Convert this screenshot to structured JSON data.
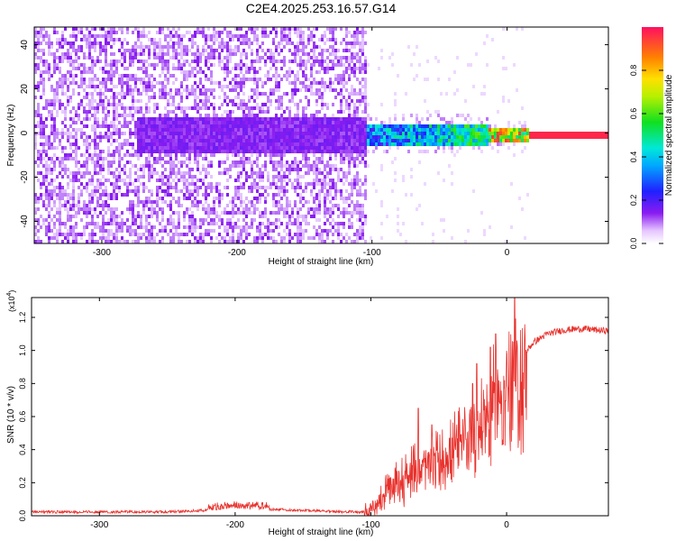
{
  "title": "C2E4.2025.253.16.57.G14",
  "colors": {
    "trace": "#e8312c",
    "frame": "#000000"
  },
  "chart_data": [
    {
      "type": "heatmap",
      "panel": "top",
      "title": "C2E4.2025.253.16.57.G14",
      "xlabel": "Height of straight line (km)",
      "ylabel": "Frequency (Hz)",
      "xlim": [
        -350,
        75
      ],
      "ylim": [
        -50,
        48
      ],
      "xticks": [
        -300,
        -200,
        -100,
        0
      ],
      "xtick_labels": [
        "-300",
        "-200",
        "-100",
        "0"
      ],
      "yticks": [
        -40,
        -20,
        0,
        20,
        40
      ],
      "ytick_labels": [
        "-40",
        "-20",
        "0",
        "20",
        "40"
      ],
      "colorbar": {
        "label": "Normalized spectral amplitude",
        "range": [
          0,
          1
        ],
        "ticks": [
          0.0,
          0.2,
          0.4,
          0.6,
          0.8
        ],
        "tick_labels": [
          "0.0",
          "0.2",
          "0.4",
          "0.6",
          "0.8"
        ],
        "colormap": "rainbow (white -> violet -> blue -> cyan -> green -> yellow -> red)"
      },
      "regions": [
        {
          "x_range": [
            -350,
            -105
          ],
          "freq_range": [
            -50,
            48
          ],
          "amplitude": "0.0-0.1 (broadband noise)"
        },
        {
          "x_range": [
            -275,
            -105
          ],
          "freq_range": [
            -8,
            8
          ],
          "amplitude": "0.1-0.2"
        },
        {
          "x_range": [
            -100,
            -15
          ],
          "freq_range": [
            -5,
            5
          ],
          "amplitude": "0.2-0.6"
        },
        {
          "x_range": [
            -15,
            5
          ],
          "freq_range": [
            -2,
            3
          ],
          "amplitude": "0.6-1.0"
        },
        {
          "x_range": [
            15,
            75
          ],
          "freq_range": [
            -1,
            1
          ],
          "amplitude": "~1.0 (narrow carrier line)"
        }
      ]
    },
    {
      "type": "line",
      "panel": "bottom",
      "xlabel": "Height of straight line (km)",
      "ylabel": "SNR (10 * v/v)",
      "scale_label": "(x10",
      "scale_exponent": "4",
      "scale_close": ")",
      "xlim": [
        -350,
        75
      ],
      "ylim": [
        0,
        1.32
      ],
      "xticks": [
        -300,
        -200,
        -100,
        0
      ],
      "xtick_labels": [
        "-300",
        "-200",
        "-100",
        "0"
      ],
      "yticks": [
        0.0,
        0.2,
        0.4,
        0.6,
        0.8,
        1.0,
        1.2
      ],
      "ytick_labels": [
        "0.0",
        "0.2",
        "0.4",
        "0.6",
        "0.8",
        "1.0",
        "1.2"
      ],
      "series": [
        {
          "name": "SNR",
          "x": [
            -350,
            -300,
            -250,
            -220,
            -200,
            -150,
            -120,
            -105,
            -100,
            -90,
            -80,
            -70,
            -60,
            -50,
            -40,
            -30,
            -20,
            -10,
            0,
            5,
            10,
            20,
            30,
            40,
            50,
            60,
            70,
            75
          ],
          "y": [
            0.02,
            0.02,
            0.02,
            0.03,
            0.04,
            0.03,
            0.02,
            0.02,
            0.05,
            0.15,
            0.25,
            0.3,
            0.35,
            0.4,
            0.45,
            0.55,
            0.65,
            0.78,
            0.9,
            0.95,
            0.95,
            1.05,
            1.1,
            1.12,
            1.13,
            1.13,
            1.12,
            1.12
          ],
          "spikes": [
            {
              "x": -65,
              "y": 0.65
            },
            {
              "x": -55,
              "y": 0.55
            },
            {
              "x": -25,
              "y": 0.8
            },
            {
              "x": -22,
              "y": 0.92
            },
            {
              "x": -12,
              "y": 1.02
            },
            {
              "x": -8,
              "y": 1.1
            },
            {
              "x": 6,
              "y": 1.32
            }
          ]
        }
      ]
    }
  ]
}
